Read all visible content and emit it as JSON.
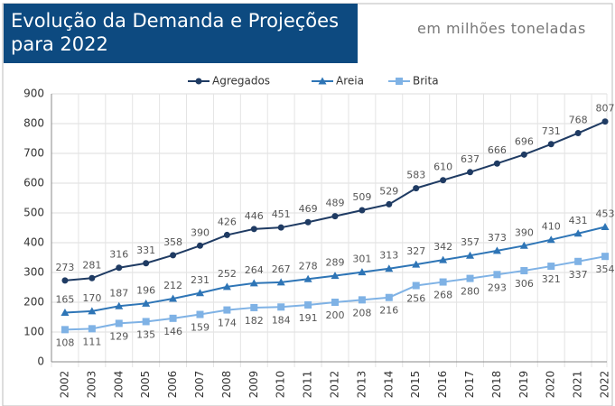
{
  "chart_data": {
    "type": "line",
    "title": "Evolução da Demanda e Projeções para 2022",
    "subtitle": "em  milhões toneladas",
    "categories": [
      "2002",
      "2003",
      "2004",
      "2005",
      "2006",
      "2007",
      "2008",
      "2009",
      "2010",
      "2011",
      "2012",
      "2013",
      "2014",
      "2015",
      "2016",
      "2017",
      "2018",
      "2019",
      "2020",
      "2021",
      "2022"
    ],
    "series": [
      {
        "name": "Agregados",
        "color": "#1f3b63",
        "marker": "circle",
        "values": [
          273,
          281,
          316,
          331,
          358,
          390,
          426,
          446,
          451,
          469,
          489,
          509,
          529,
          583,
          610,
          637,
          666,
          696,
          731,
          768,
          807
        ]
      },
      {
        "name": "Areia",
        "color": "#2e75b6",
        "marker": "triangle",
        "values": [
          165,
          170,
          187,
          196,
          212,
          231,
          252,
          264,
          267,
          278,
          289,
          301,
          313,
          327,
          342,
          357,
          373,
          390,
          410,
          431,
          453
        ]
      },
      {
        "name": "Brita",
        "color": "#7fb2e5",
        "marker": "square",
        "values": [
          108,
          111,
          129,
          135,
          146,
          159,
          174,
          182,
          184,
          191,
          200,
          208,
          216,
          256,
          268,
          280,
          293,
          306,
          321,
          337,
          354
        ]
      }
    ],
    "ylim": [
      0,
      900
    ],
    "yticks": [
      0,
      100,
      200,
      300,
      400,
      500,
      600,
      700,
      800,
      900
    ],
    "grid": true,
    "legend": "top"
  }
}
